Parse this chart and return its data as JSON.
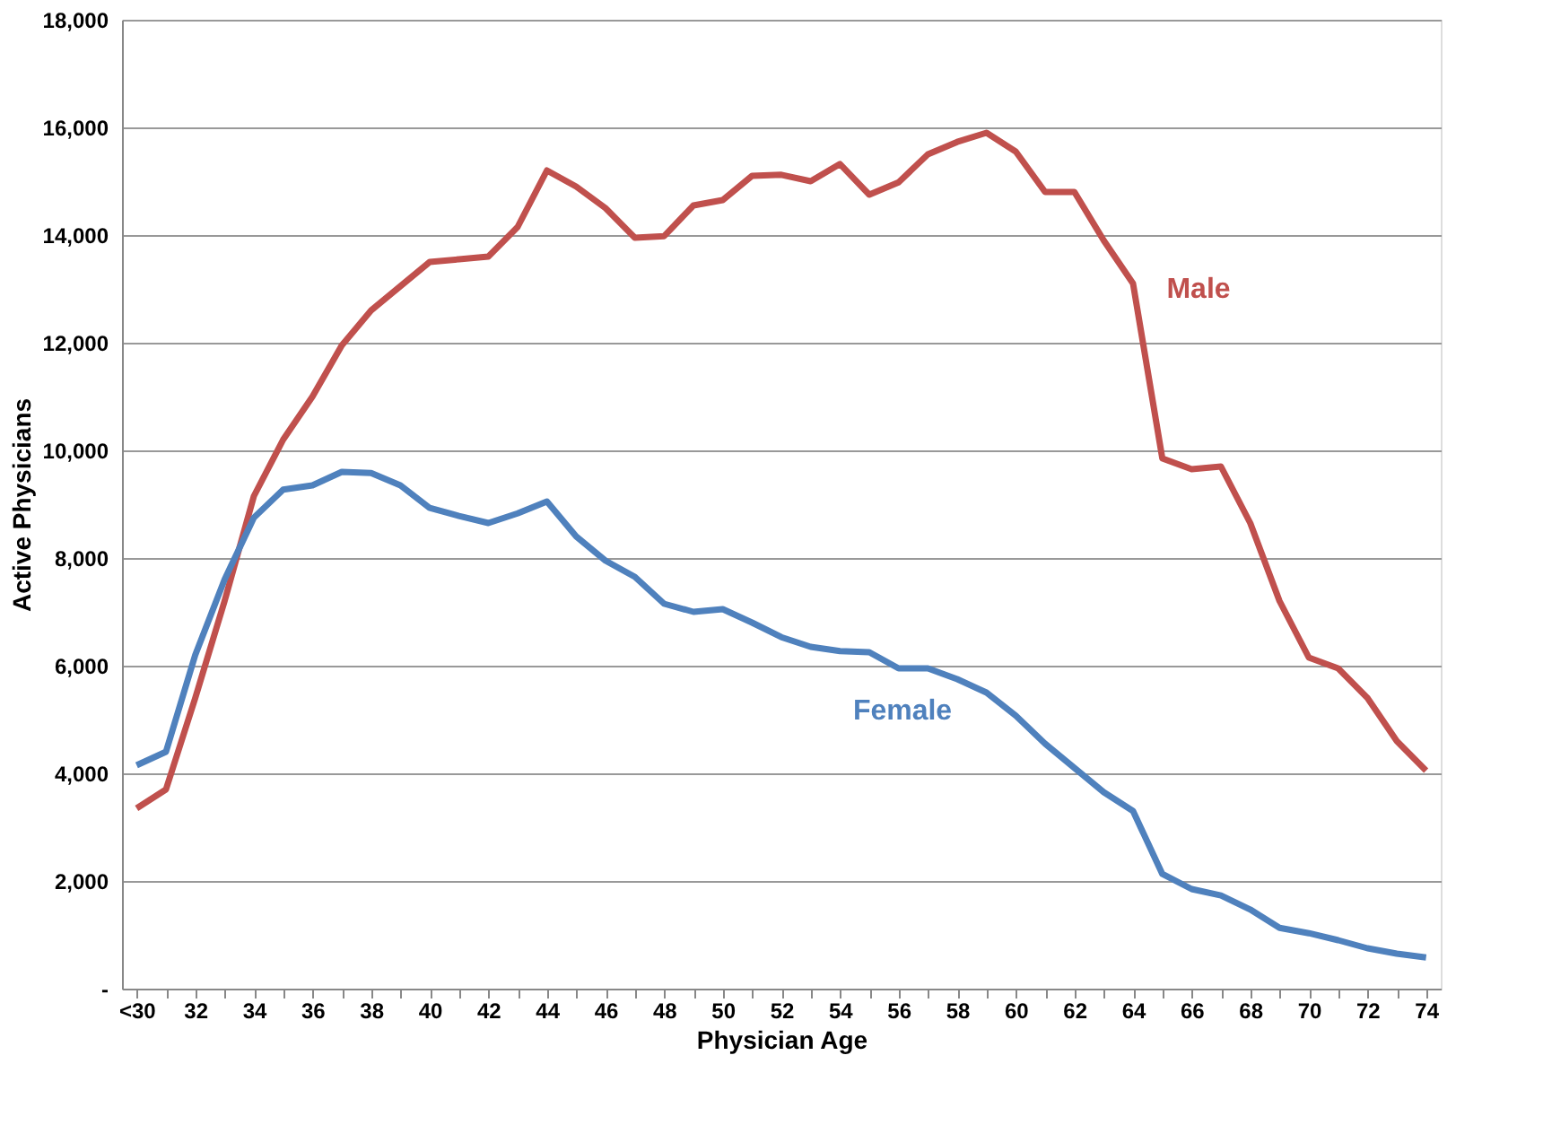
{
  "chart_data": {
    "type": "line",
    "xlabel": "Physician Age",
    "ylabel": "Active Physicians",
    "categories": [
      "<30",
      null,
      "32",
      null,
      "34",
      null,
      "36",
      null,
      "38",
      null,
      "40",
      null,
      "42",
      null,
      "44",
      null,
      "46",
      null,
      "48",
      null,
      "50",
      null,
      "52",
      null,
      "54",
      null,
      "56",
      null,
      "58",
      null,
      "60",
      null,
      "62",
      null,
      "64",
      null,
      "66",
      null,
      "68",
      null,
      "70",
      null,
      "72",
      null,
      "74"
    ],
    "series": [
      {
        "name": "Male",
        "color": "#c0504d",
        "values": [
          3350,
          3700,
          5400,
          7200,
          9150,
          10200,
          11000,
          11950,
          12600,
          13050,
          13500,
          13550,
          13600,
          14150,
          15200,
          14900,
          14500,
          13950,
          13980,
          14550,
          14650,
          15100,
          15120,
          15000,
          15320,
          14750,
          14980,
          15500,
          15730,
          15900,
          15550,
          14800,
          14800,
          13900,
          13100,
          9850,
          9650,
          9700,
          8650,
          7200,
          6150,
          5950,
          5400,
          4600,
          4050
        ]
      },
      {
        "name": "Female",
        "color": "#4f81bd",
        "values": [
          4150,
          4400,
          6200,
          7600,
          8750,
          9270,
          9350,
          9600,
          9580,
          9350,
          8930,
          8780,
          8650,
          8830,
          9050,
          8400,
          7950,
          7650,
          7150,
          7000,
          7050,
          6800,
          6530,
          6350,
          6270,
          6250,
          5950,
          5950,
          5750,
          5500,
          5070,
          4550,
          4100,
          3650,
          3300,
          2130,
          1850,
          1730,
          1470,
          1130,
          1030,
          900,
          750,
          650,
          580
        ]
      }
    ],
    "ylim": [
      0,
      18000
    ],
    "yticks": [
      {
        "value": 0,
        "label": "-"
      },
      {
        "value": 2000,
        "label": "2,000"
      },
      {
        "value": 4000,
        "label": "4,000"
      },
      {
        "value": 6000,
        "label": "6,000"
      },
      {
        "value": 8000,
        "label": "8,000"
      },
      {
        "value": 10000,
        "label": "10,000"
      },
      {
        "value": 12000,
        "label": "12,000"
      },
      {
        "value": 14000,
        "label": "14,000"
      },
      {
        "value": 16000,
        "label": "16,000"
      },
      {
        "value": 18000,
        "label": "18,000"
      }
    ],
    "grid": "y",
    "legend": false,
    "marker": "none",
    "line_style": "solid"
  }
}
